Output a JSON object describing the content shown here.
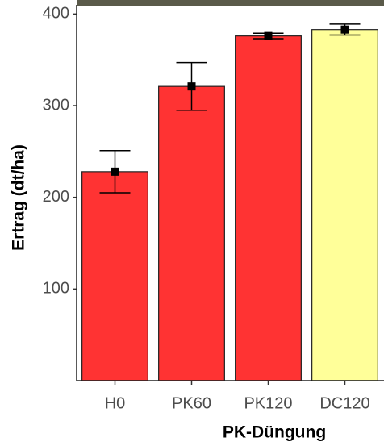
{
  "chart_data": {
    "type": "bar",
    "x_label": "PK-Düngung",
    "y_label": "Ertrag (dt/ha)",
    "categories": [
      "H0",
      "PK60",
      "PK120",
      "DC120"
    ],
    "values": [
      228,
      321,
      376,
      383
    ],
    "errors": [
      23,
      26,
      3,
      6
    ],
    "colors": [
      "#ff3333",
      "#ff3333",
      "#ff3333",
      "#ffff99"
    ],
    "ylim": [
      0,
      410
    ],
    "yticks": [
      100,
      200,
      300,
      400
    ],
    "grid": false
  }
}
